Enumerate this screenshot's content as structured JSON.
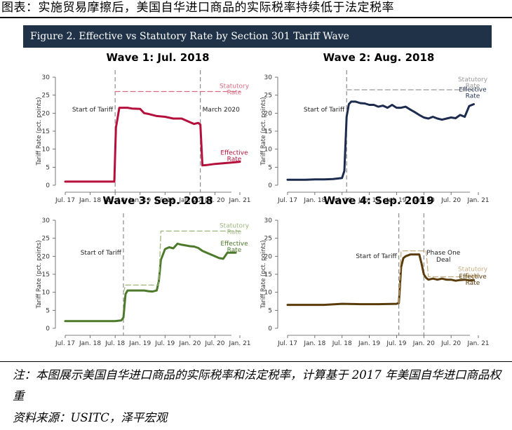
{
  "page_title": "图表：实施贸易摩擦后，美国自华进口商品的实际税率持续低于法定税率",
  "figure_header": "Figure 2. Effective vs Statutory Rate by Section 301 Tariff Wave",
  "note": "注：本图展示美国自华进口商品的实际税率和法定税率，计算基于 2017 年美国自华进口商品权重",
  "source": "资料来源：USITC，泽平宏观",
  "colors": {
    "header_bg": "#1f3247",
    "wave1": "#b5103c",
    "wave1_stat": "#d96a84",
    "wave2": "#1c2b4e",
    "wave2_stat": "#9a9a9a",
    "wave3": "#4c7a2a",
    "wave3_stat": "#9cb67f",
    "wave4": "#5a3c0a",
    "wave4_stat": "#c8ac82"
  },
  "chart_data": [
    {
      "type": "line",
      "title": "Wave 1: Jul. 2018",
      "ylabel": "Tariff Rate (pct. points)",
      "ylim": [
        0,
        30
      ],
      "yticks": [
        "0",
        "5",
        "10",
        "15",
        "20",
        "25",
        "30"
      ],
      "xticks": [
        "Jul. 17",
        "Jan. 18",
        "Jul. 18",
        "Jan. 19",
        "Jul. 19",
        "Jan. 20",
        "Jul. 20",
        "Jan. 21"
      ],
      "series": [
        {
          "name": "Effective Rate",
          "color": "#b5103c",
          "style": "solid",
          "x": [
            0,
            2,
            4,
            6,
            10,
            11.8,
            12.2,
            12.5,
            13,
            14,
            15,
            16,
            18,
            19,
            20,
            21,
            22,
            24,
            26,
            27,
            28,
            30,
            31,
            32,
            32.5,
            33,
            34,
            36,
            38,
            40,
            42
          ],
          "values": [
            1,
            1,
            1,
            1,
            1,
            1,
            16,
            18,
            21.5,
            21.5,
            21.5,
            21.3,
            21.2,
            20,
            19.8,
            19.5,
            19.2,
            19,
            18.5,
            18.5,
            18.5,
            17.5,
            17,
            17.3,
            16.8,
            5.5,
            5.6,
            5.9,
            6.1,
            6.3,
            6.5
          ]
        },
        {
          "name": "Statutory Rate",
          "color": "#d96a84",
          "style": "dashed",
          "x": [
            12,
            12.5,
            42
          ],
          "values": [
            26,
            26,
            26
          ]
        }
      ],
      "vlines": [
        {
          "x": 12,
          "label": "Start of Tariff"
        },
        {
          "x": 32.5,
          "label": "March 2020"
        }
      ]
    },
    {
      "type": "line",
      "title": "Wave 2: Aug. 2018",
      "ylabel": "Tariff Rate (pct. points)",
      "ylim": [
        0,
        30
      ],
      "yticks": [
        "0",
        "5",
        "10",
        "15",
        "20",
        "25",
        "30"
      ],
      "xticks": [
        "Jul. 17",
        "Jan. 18",
        "Jul. 18",
        "Jan. 19",
        "Jul. 19",
        "Jan. 20",
        "Jul. 20",
        "Jan. 21"
      ],
      "series": [
        {
          "name": "Effective Rate",
          "color": "#1c2b4e",
          "style": "solid",
          "x": [
            0,
            2,
            4,
            6,
            8,
            10,
            12,
            12.5,
            13,
            13.5,
            14,
            15,
            16,
            17,
            18,
            19,
            20,
            21,
            22,
            23,
            24,
            25,
            26,
            27,
            28,
            29,
            30,
            31,
            32,
            33,
            34,
            35,
            36,
            37,
            38,
            39,
            40,
            41
          ],
          "values": [
            1.5,
            1.5,
            1.5,
            1.6,
            1.6,
            1.7,
            2,
            4,
            19,
            22.5,
            23.2,
            23.2,
            22.8,
            22.7,
            22.3,
            22.3,
            21.8,
            22.1,
            21.5,
            22.3,
            21.5,
            21.5,
            21.8,
            21,
            20.3,
            19.5,
            18.8,
            18.5,
            19,
            18.5,
            18.2,
            18.5,
            18.8,
            18.6,
            19.5,
            19,
            22,
            22.5
          ]
        },
        {
          "name": "Statutory Rate",
          "color": "#9a9a9a",
          "style": "dashed",
          "x": [
            13,
            13.5,
            42
          ],
          "values": [
            26.5,
            26.5,
            26.5
          ]
        }
      ],
      "vlines": [
        {
          "x": 13,
          "label": "Start of Tariff"
        }
      ]
    },
    {
      "type": "line",
      "title": "Wave 3: Sep. 2018",
      "ylabel": "Tariff Rate (pct. points)",
      "ylim": [
        0,
        30
      ],
      "yticks": [
        "0",
        "5",
        "10",
        "15",
        "20",
        "25",
        "30"
      ],
      "xticks": [
        "Jul. 17",
        "Jan. 18",
        "Jul. 18",
        "Jan. 19",
        "Jul. 19",
        "Jan. 20",
        "Jul. 20",
        "Jan. 21"
      ],
      "series": [
        {
          "name": "Effective Rate",
          "color": "#4c7a2a",
          "style": "solid",
          "x": [
            0,
            4,
            8,
            12,
            13.5,
            14,
            14.5,
            15,
            16,
            18,
            19,
            20,
            21,
            22,
            22.5,
            23,
            24,
            25,
            26,
            27,
            28,
            29,
            30,
            31,
            32,
            33,
            34,
            35,
            36,
            37,
            38,
            39,
            40,
            41
          ],
          "values": [
            2,
            2,
            2,
            2,
            2.2,
            3,
            9.5,
            10.5,
            10.5,
            10.5,
            10.5,
            10.3,
            10.2,
            10.5,
            13,
            19,
            22,
            22.5,
            22.2,
            23.5,
            23.2,
            23,
            22.8,
            22.7,
            22.3,
            21.5,
            21,
            20.5,
            20,
            19.5,
            19.3,
            21,
            21,
            21
          ]
        },
        {
          "name": "Statutory Rate",
          "color": "#9cb67f",
          "style": "dashed",
          "x": [
            14,
            14.5,
            21.5,
            22.5,
            23,
            42
          ],
          "values": [
            10,
            12,
            12,
            12,
            27,
            27
          ]
        }
      ],
      "vlines": [
        {
          "x": 14,
          "label": "Start of Tariff"
        }
      ]
    },
    {
      "type": "line",
      "title": "Wave 4: Sep. 2019",
      "ylabel": "Tariff Rate (pct. points)",
      "ylim": [
        0,
        30
      ],
      "yticks": [
        "0",
        "5",
        "10",
        "15",
        "20",
        "25",
        "30"
      ],
      "xticks": [
        "Jul. 17",
        "Jan. 18",
        "Jul. 18",
        "Jan. 19",
        "Jul. 19",
        "Jan. 20",
        "Jul. 20",
        "Jan. 21"
      ],
      "series": [
        {
          "name": "Effective Rate",
          "color": "#5a3c0a",
          "style": "solid",
          "x": [
            0,
            4,
            8,
            12,
            16,
            20,
            24,
            24.5,
            25,
            25.5,
            26,
            27,
            28,
            29,
            29.5,
            30,
            30.5,
            31,
            32,
            33,
            34,
            35,
            36,
            37,
            38,
            39,
            40,
            41
          ],
          "values": [
            6.5,
            6.5,
            6.5,
            6.8,
            6.7,
            6.7,
            6.8,
            7,
            17,
            19.5,
            20,
            20.5,
            20.5,
            20.5,
            18,
            15,
            14,
            13.5,
            13.8,
            13.5,
            13.8,
            13.5,
            13.5,
            13.2,
            13.4,
            13.5,
            13.3,
            13.4
          ]
        },
        {
          "name": "Statutory Rate",
          "color": "#c8ac82",
          "style": "dashed",
          "x": [
            24.5,
            25,
            30,
            30.5,
            31,
            42
          ],
          "values": [
            7,
            21.5,
            21.5,
            21.5,
            14.3,
            14.3
          ]
        }
      ],
      "vlines": [
        {
          "x": 24.5,
          "label": "Start of Tariff"
        },
        {
          "x": 30,
          "label": "Phase One Deal"
        }
      ]
    }
  ],
  "annotations": {
    "w1_stat": [
      "Statutory",
      "Rate"
    ],
    "w1_eff": [
      "Effective",
      "Rate"
    ],
    "w1_start": "Start of Tariff",
    "w1_march": "March 2020",
    "w2_stat": [
      "Statutory",
      "Rate"
    ],
    "w2_eff": [
      "Effective",
      "Rate"
    ],
    "w2_start": "Start of Tariff",
    "w3_stat": [
      "Statutory",
      "Rate"
    ],
    "w3_eff": [
      "Effective",
      "Rate"
    ],
    "w3_start": "Start of Tariff",
    "w4_stat": [
      "Statutory",
      "Rate"
    ],
    "w4_eff": [
      "Effective",
      "Rate"
    ],
    "w4_start": "Start of Tariff",
    "w4_phase": [
      "Phase One",
      "Deal"
    ]
  }
}
